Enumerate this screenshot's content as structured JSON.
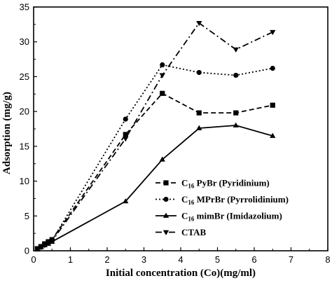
{
  "chart_data": {
    "type": "line",
    "title": "",
    "xlabel": "Initial concentration (Co)(mg/ml)",
    "ylabel": "Adsorption (mg/g)",
    "xlim": [
      0,
      8
    ],
    "ylim": [
      0,
      35
    ],
    "xticks": [
      0,
      1,
      2,
      3,
      4,
      5,
      6,
      7,
      8
    ],
    "yticks": [
      0,
      5,
      10,
      15,
      20,
      25,
      30,
      35
    ],
    "grid": false,
    "legend_position": "bottom-right",
    "series": [
      {
        "name_main": "C",
        "name_sub": "16",
        "name_rest": " PyBr (Pyridinium)",
        "line_style": "dashed",
        "marker": "square",
        "color": "#000000",
        "points": [
          [
            0.1,
            0.3
          ],
          [
            0.2,
            0.6
          ],
          [
            0.3,
            1.0
          ],
          [
            0.4,
            1.3
          ],
          [
            0.5,
            1.6
          ],
          [
            2.5,
            16.7
          ],
          [
            3.5,
            22.6
          ],
          [
            4.5,
            19.8
          ],
          [
            5.5,
            19.8
          ],
          [
            6.5,
            20.9
          ]
        ]
      },
      {
        "name_main": "C",
        "name_sub": "16",
        "name_rest": " MPrBr (Pyrrolidinium)",
        "line_style": "dotted",
        "marker": "circle",
        "color": "#000000",
        "points": [
          [
            0.1,
            0.3
          ],
          [
            0.2,
            0.6
          ],
          [
            0.3,
            0.9
          ],
          [
            0.4,
            1.2
          ],
          [
            0.5,
            1.5
          ],
          [
            2.5,
            18.9
          ],
          [
            3.5,
            26.7
          ],
          [
            4.5,
            25.6
          ],
          [
            5.5,
            25.2
          ],
          [
            6.5,
            26.2
          ]
        ]
      },
      {
        "name_main": "C",
        "name_sub": "16",
        "name_rest": " mimBr (Imidazolium)",
        "line_style": "solid",
        "marker": "triangle-up",
        "color": "#000000",
        "points": [
          [
            0.1,
            0.2
          ],
          [
            0.2,
            0.5
          ],
          [
            0.3,
            0.8
          ],
          [
            0.4,
            1.0
          ],
          [
            0.5,
            1.3
          ],
          [
            2.5,
            7.1
          ],
          [
            3.5,
            13.1
          ],
          [
            4.5,
            17.6
          ],
          [
            5.5,
            18.0
          ],
          [
            6.5,
            16.5
          ]
        ]
      },
      {
        "name_main": "CTAB",
        "name_sub": "",
        "name_rest": "",
        "line_style": "dashdot",
        "marker": "triangle-down",
        "color": "#000000",
        "points": [
          [
            0.1,
            0.3
          ],
          [
            0.2,
            0.5
          ],
          [
            0.3,
            0.8
          ],
          [
            0.4,
            1.1
          ],
          [
            0.5,
            1.4
          ],
          [
            2.5,
            16.1
          ],
          [
            3.5,
            25.2
          ],
          [
            4.5,
            32.7
          ],
          [
            5.5,
            28.9
          ],
          [
            6.5,
            31.4
          ]
        ]
      }
    ]
  }
}
